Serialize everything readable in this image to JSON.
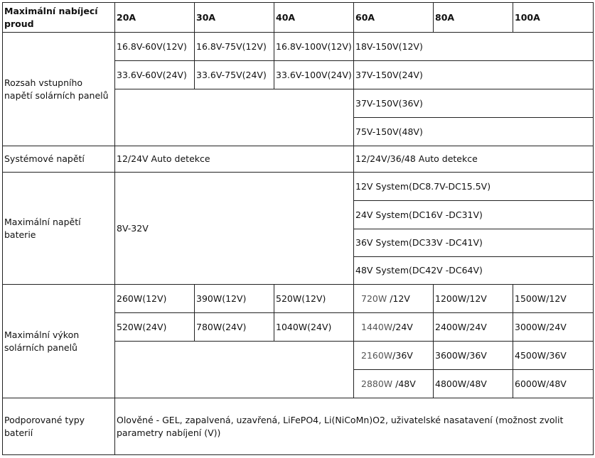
{
  "header": {
    "label": "Maximální nabíjecí proud",
    "columns": [
      "20A",
      "30A",
      "40A",
      "60A",
      "80A",
      "100A"
    ]
  },
  "input_voltage": {
    "label": "Rozsah vstupního napětí solárních panelů",
    "rows": [
      [
        "16.8V-60V(12V)",
        "16.8V-75V(12V)",
        "16.8V-100V(12V)",
        "18V-150V(12V)"
      ],
      [
        "33.6V-60V(24V)",
        "33.6V-75V(24V)",
        "33.6V-100V(24V)",
        "37V-150V(24V)"
      ],
      [
        "37V-150V(36V)"
      ],
      [
        "75V-150V(48V)"
      ]
    ]
  },
  "system_voltage": {
    "label": "Systémové napětí",
    "low": "12/24V Auto detekce",
    "high": "12/24V/36/48 Auto detekce"
  },
  "battery_voltage": {
    "label": "Maximální napětí baterie",
    "low": "8V-32V",
    "high": [
      "12V System(DC8.7V-DC15.5V)",
      "24V System(DC16V -DC31V)",
      "36V System(DC33V -DC41V)",
      "48V System(DC42V -DC64V)"
    ]
  },
  "panel_power": {
    "label": "Maximální výkon solárních panelů",
    "low_rows": [
      [
        "260W(12V)",
        "390W(12V)",
        "520W(12V)"
      ],
      [
        "520W(24V)",
        "780W(24V)",
        "1040W(24V)"
      ]
    ],
    "high_rows": [
      [
        {
          "num": "720W",
          "unit": " /12V"
        },
        "1200W/12V",
        "1500W/12V"
      ],
      [
        {
          "num": "1440W",
          "unit": "/24V"
        },
        "2400W/24V",
        "3000W/24V"
      ],
      [
        {
          "num": "2160W",
          "unit": "/36V"
        },
        "3600W/36V",
        "4500W/36V"
      ],
      [
        {
          "num": "2880W",
          "unit": " /48V"
        },
        "4800W/48V",
        "6000W/48V"
      ]
    ]
  },
  "battery_types": {
    "label": "Podporované typy baterií",
    "value": "Olověné - GEL, zapalvená, uzavřená, LiFePO4, Li(NiCoMn)O2, uživatelské nasatavení (možnost zvolit parametry nabíjení (V))"
  }
}
